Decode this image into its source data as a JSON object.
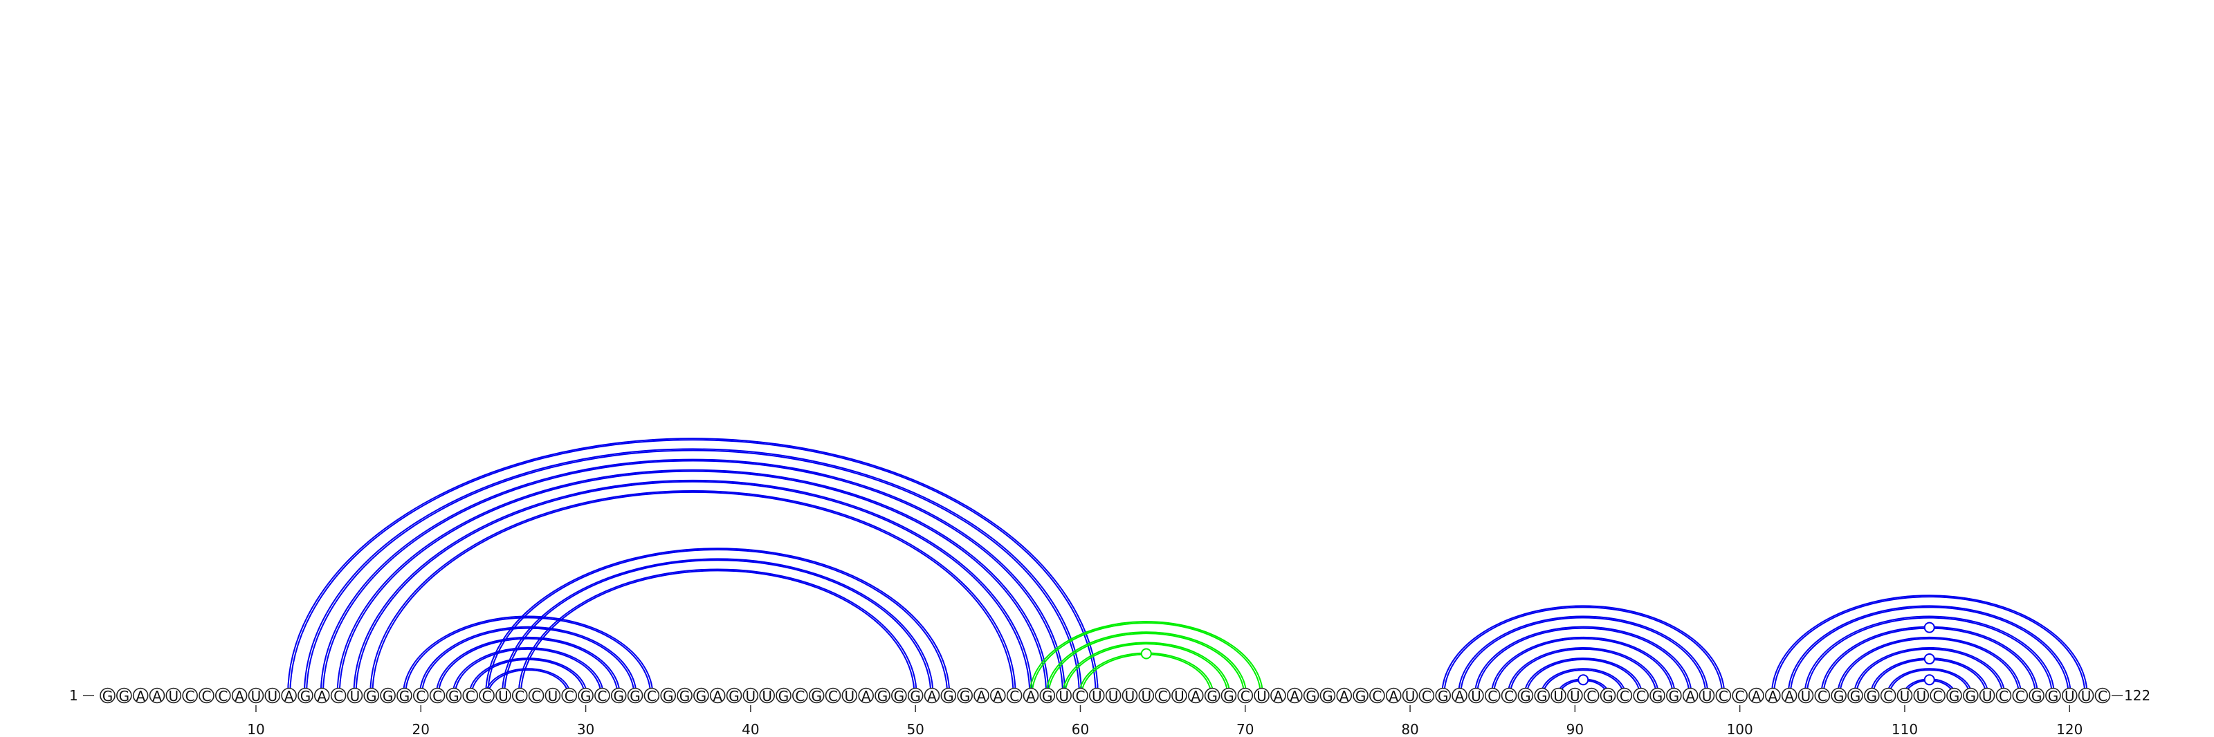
{
  "sequence": "GGAAUCCCAUUAGACUGGGCCGCCUCCUCGCGGCGGGAGUUGCGCUAGGGAGGAACAGUCUUUUCUAGGCUAAGGAGCAUCGAUCCGGUUCGCCGGAUCCAAAUCGGGCUUCGGUCCGGUUC",
  "labels": {
    "start": "1",
    "end": "122",
    "ticks": [
      "10",
      "20",
      "30",
      "40",
      "50",
      "60",
      "70",
      "80",
      "90",
      "100",
      "110",
      "120"
    ]
  },
  "colors": {
    "main_pairs": "#0000ee",
    "alt_pairs": "#00ee00",
    "outline": "#222222"
  },
  "pairs": [
    {
      "i": 12,
      "j": 61,
      "color": "main_pairs"
    },
    {
      "i": 13,
      "j": 60,
      "color": "main_pairs"
    },
    {
      "i": 14,
      "j": 59,
      "color": "main_pairs"
    },
    {
      "i": 15,
      "j": 58,
      "color": "main_pairs"
    },
    {
      "i": 16,
      "j": 57,
      "color": "main_pairs"
    },
    {
      "i": 17,
      "j": 56,
      "color": "main_pairs"
    },
    {
      "i": 19,
      "j": 34,
      "color": "main_pairs"
    },
    {
      "i": 20,
      "j": 33,
      "color": "main_pairs"
    },
    {
      "i": 21,
      "j": 32,
      "color": "main_pairs"
    },
    {
      "i": 22,
      "j": 31,
      "color": "main_pairs"
    },
    {
      "i": 23,
      "j": 30,
      "color": "main_pairs"
    },
    {
      "i": 24,
      "j": 29,
      "color": "main_pairs"
    },
    {
      "i": 24,
      "j": 52,
      "color": "main_pairs"
    },
    {
      "i": 25,
      "j": 51,
      "color": "main_pairs"
    },
    {
      "i": 26,
      "j": 50,
      "color": "main_pairs"
    },
    {
      "i": 57,
      "j": 71,
      "color": "alt_pairs"
    },
    {
      "i": 58,
      "j": 70,
      "color": "alt_pairs"
    },
    {
      "i": 59,
      "j": 69,
      "color": "alt_pairs"
    },
    {
      "i": 60,
      "j": 68,
      "color": "alt_pairs"
    },
    {
      "i": 82,
      "j": 99,
      "color": "main_pairs"
    },
    {
      "i": 83,
      "j": 98,
      "color": "main_pairs"
    },
    {
      "i": 84,
      "j": 97,
      "color": "main_pairs"
    },
    {
      "i": 85,
      "j": 96,
      "color": "main_pairs"
    },
    {
      "i": 86,
      "j": 95,
      "color": "main_pairs"
    },
    {
      "i": 87,
      "j": 94,
      "color": "main_pairs"
    },
    {
      "i": 88,
      "j": 93,
      "color": "main_pairs"
    },
    {
      "i": 89,
      "j": 92,
      "color": "main_pairs"
    },
    {
      "i": 102,
      "j": 121,
      "color": "main_pairs"
    },
    {
      "i": 103,
      "j": 120,
      "color": "main_pairs"
    },
    {
      "i": 104,
      "j": 119,
      "color": "main_pairs"
    },
    {
      "i": 105,
      "j": 118,
      "color": "main_pairs"
    },
    {
      "i": 106,
      "j": 117,
      "color": "main_pairs"
    },
    {
      "i": 107,
      "j": 116,
      "color": "main_pairs"
    },
    {
      "i": 108,
      "j": 115,
      "color": "main_pairs"
    },
    {
      "i": 109,
      "j": 114,
      "color": "main_pairs"
    },
    {
      "i": 110,
      "j": 113,
      "color": "main_pairs"
    }
  ],
  "markers": [
    {
      "i": 60,
      "j": 68,
      "color": "alt_pairs"
    },
    {
      "i": 89,
      "j": 92,
      "color": "main_pairs"
    },
    {
      "i": 110,
      "j": 113,
      "color": "main_pairs"
    },
    {
      "i": 108,
      "j": 115,
      "color": "main_pairs"
    },
    {
      "i": 105,
      "j": 118,
      "color": "main_pairs"
    }
  ]
}
